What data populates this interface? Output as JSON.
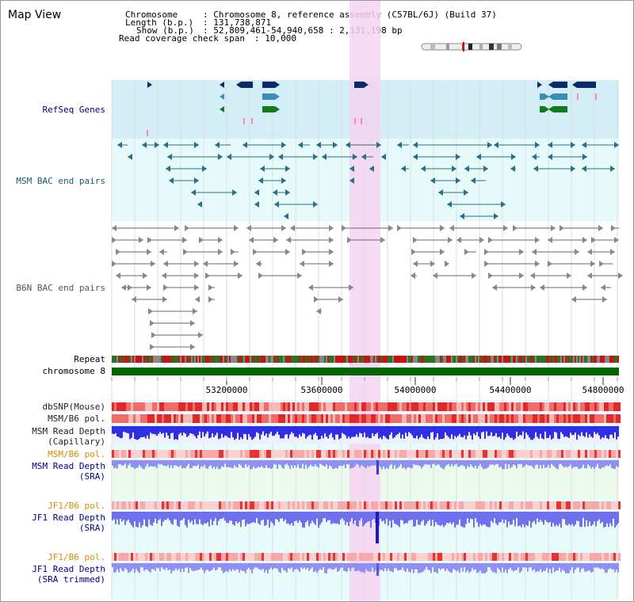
{
  "app": {
    "title": "Map View"
  },
  "info": {
    "chromosome_key": "Chromosome",
    "chromosome_value": ": Chromosome 8, reference assembly (C57BL/6J) (Build 37)",
    "length_key": "Length (b.p.)",
    "length_value": ": 131,738,871",
    "show_key": "Show (b.p.)",
    "show_value": ": 52,809,461-54,940,658 : 2,131,198 bp",
    "coverage_key": "Read coverage check span",
    "coverage_value": ": 10,000"
  },
  "tracks": {
    "refseq": "RefSeq Genes",
    "msm_bac": "MSM BAC end pairs",
    "b6n_bac": "B6N BAC end pairs",
    "repeat": "Repeat",
    "chromosome": "chromosome 8",
    "dbsnp": "dbSNP(Mouse)",
    "msm_b6_pol": "MSM/B6 pol.",
    "msm_depth_cap_1": "MSM Read Depth",
    "msm_depth_cap_2": "(Capillary)",
    "msm_b6_pol_2": "MSM/B6 pol.",
    "msm_depth_sra_1": "MSM Read Depth",
    "msm_depth_sra_2": "(SRA)",
    "jf1_b6_pol": "JF1/B6 pol.",
    "jf1_depth_sra_1": "JF1 Read Depth",
    "jf1_depth_sra_2": "(SRA)",
    "jf1_b6_pol_2": "JF1/B6 pol.",
    "jf1_depth_trim_1": "JF1 Read Depth",
    "jf1_depth_trim_2": "(SRA trimmed)"
  },
  "axis": {
    "ticks": [
      "53200000",
      "53600000",
      "54000000",
      "54400000",
      "54800000"
    ]
  },
  "colors": {
    "refseq_bg": "#d4eef8",
    "bac_bg": "#e6fafa",
    "highlight": "#f5d2f0",
    "gene_navy": "#0a2a6a",
    "gene_teal": "#3a8db8",
    "gene_green": "#117a1a",
    "msm_line": "#2a6f86",
    "b6n_line": "#666666",
    "chromosome_bar": "#006400",
    "depth_blue": "#3333dd",
    "depth_light": "#8080f0",
    "label_blue": "#00008b",
    "label_orange": "#d98a00"
  }
}
